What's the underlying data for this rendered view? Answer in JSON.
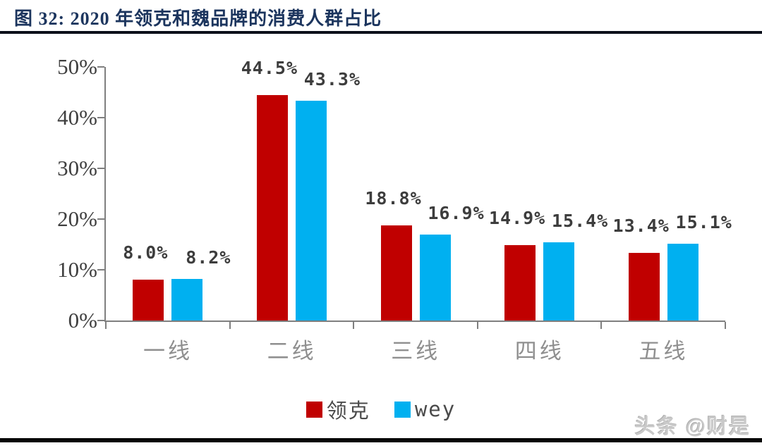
{
  "header": {
    "title": "图 32:  2020 年领克和魏品牌的消费人群占比"
  },
  "watermark": "头条 @财是",
  "colors": {
    "lynk_red": "#C00000",
    "wey_cyan": "#00B0F0",
    "title_navy": "#1c355e",
    "axis_gray": "#7f7f7f",
    "value_label_gray": "#3d3d3d",
    "category_gray": "#8f8f8f"
  },
  "chart_data": {
    "type": "bar",
    "title": "2020 年领克和魏品牌的消费人群占比",
    "categories": [
      "一线",
      "二线",
      "三线",
      "四线",
      "五线"
    ],
    "series": [
      {
        "name": "领克",
        "color": "#C00000",
        "values": [
          8.0,
          44.5,
          18.8,
          14.9,
          13.4
        ]
      },
      {
        "name": "wey",
        "color": "#00B0F0",
        "values": [
          8.2,
          43.3,
          16.9,
          15.4,
          15.1
        ]
      }
    ],
    "value_label_format": "percent_one_decimal",
    "y_ticks": [
      "0%",
      "10%",
      "20%",
      "30%",
      "40%",
      "50%"
    ],
    "ylim": [
      0,
      50
    ],
    "xlabel": "",
    "ylabel": "",
    "grid": false,
    "legend_position": "bottom"
  }
}
